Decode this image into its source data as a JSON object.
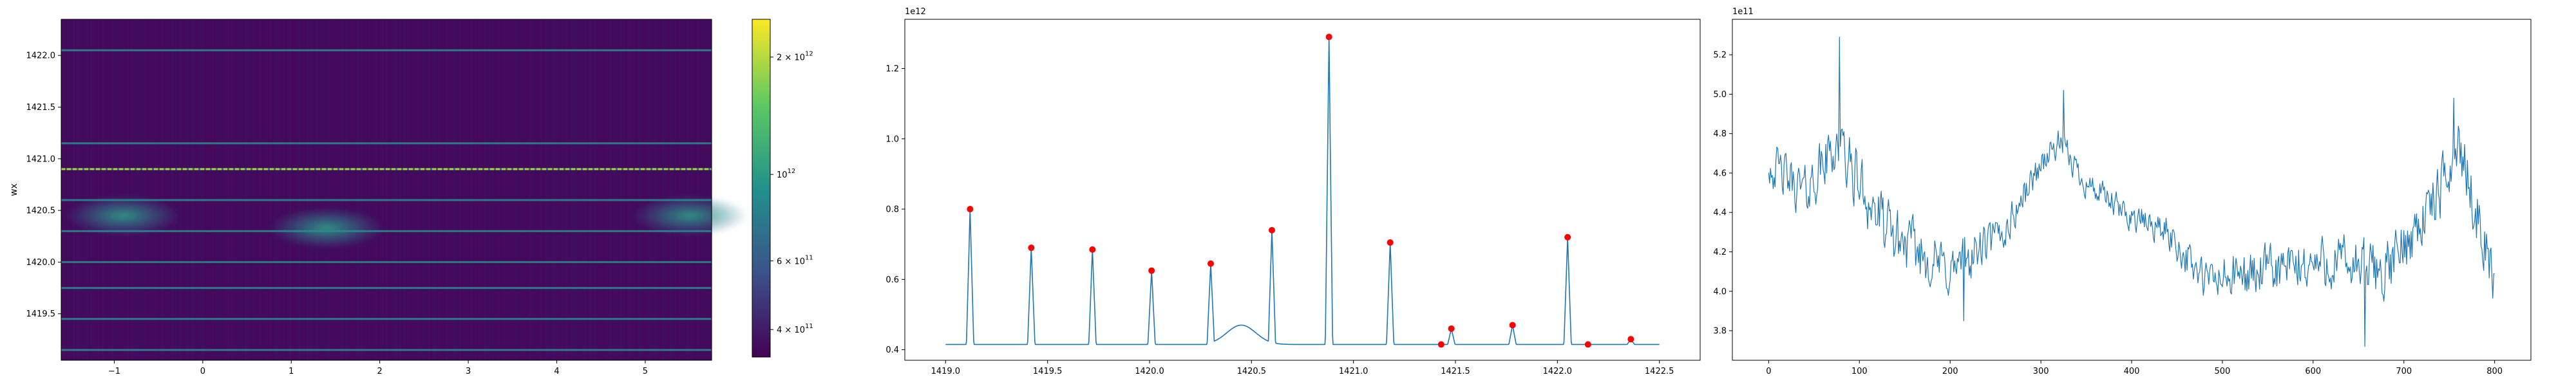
{
  "chart_data": [
    {
      "type": "heatmap",
      "ylabel": "wx",
      "xlim": [
        -1.6,
        5.75
      ],
      "ylim": [
        1419.05,
        1422.35
      ],
      "xticks": [
        -1,
        0,
        1,
        2,
        3,
        4,
        5
      ],
      "xtick_labels": [
        "−1",
        "0",
        "1",
        "2",
        "3",
        "4",
        "5"
      ],
      "yticks": [
        1419.5,
        1420.0,
        1420.5,
        1421.0,
        1421.5,
        1422.0
      ],
      "ytick_labels": [
        "1419.5",
        "1420.0",
        "1420.5",
        "1421.0",
        "1421.5",
        "1422.0"
      ],
      "horizontal_lines_y": [
        1419.15,
        1419.45,
        1419.75,
        1420.0,
        1420.3,
        1420.6,
        1420.9,
        1421.15,
        1422.05
      ],
      "bright_line_y": 1420.9,
      "blobs": [
        {
          "x": -0.9,
          "y": 1420.45
        },
        {
          "x": 1.4,
          "y": 1420.33
        },
        {
          "x": 5.5,
          "y": 1420.45
        }
      ],
      "colorbar": {
        "scale": "log",
        "range": [
          340000000000.0,
          2500000000000.0
        ],
        "ticks": [
          400000000000.0,
          600000000000.0,
          1000000000000.0,
          2000000000000.0
        ],
        "tick_labels": [
          {
            "mant": "4",
            "base": "10",
            "exp": "11"
          },
          {
            "mant": "6",
            "base": "10",
            "exp": "11"
          },
          {
            "mant": "",
            "base": "10",
            "exp": "12"
          },
          {
            "mant": "2",
            "base": "10",
            "exp": "12"
          }
        ],
        "times_sign": "×"
      },
      "colors": [
        "#440154",
        "#3b528b",
        "#21918c",
        "#5ec962",
        "#fde725"
      ]
    },
    {
      "type": "line",
      "offset_label": "1e12",
      "xlim": [
        1418.8,
        1422.7
      ],
      "ylim": [
        0.37,
        1.34
      ],
      "xticks": [
        1419.0,
        1419.5,
        1420.0,
        1420.5,
        1421.0,
        1421.5,
        1422.0,
        1422.5
      ],
      "xtick_labels": [
        "1419.0",
        "1419.5",
        "1420.0",
        "1420.5",
        "1421.0",
        "1421.5",
        "1422.0",
        "1422.5"
      ],
      "yticks": [
        0.4,
        0.6,
        0.8,
        1.0,
        1.2
      ],
      "ytick_labels": [
        "0.4",
        "0.6",
        "0.8",
        "1.0",
        "1.2"
      ],
      "baseline": 0.415,
      "x_start": 1419.0,
      "x_end": 1422.5,
      "peaks": [
        {
          "x": 1419.12,
          "y": 0.8
        },
        {
          "x": 1419.42,
          "y": 0.69
        },
        {
          "x": 1419.72,
          "y": 0.685
        },
        {
          "x": 1420.01,
          "y": 0.625
        },
        {
          "x": 1420.3,
          "y": 0.645
        },
        {
          "x": 1420.6,
          "y": 0.74
        },
        {
          "x": 1420.88,
          "y": 1.29
        },
        {
          "x": 1421.18,
          "y": 0.705
        },
        {
          "x": 1421.48,
          "y": 0.46
        },
        {
          "x": 1421.78,
          "y": 0.47
        },
        {
          "x": 1422.05,
          "y": 0.72
        },
        {
          "x": 1422.36,
          "y": 0.43
        }
      ],
      "markers": [
        {
          "x": 1419.12,
          "y": 0.8
        },
        {
          "x": 1419.42,
          "y": 0.69
        },
        {
          "x": 1419.72,
          "y": 0.685
        },
        {
          "x": 1420.01,
          "y": 0.625
        },
        {
          "x": 1420.3,
          "y": 0.645
        },
        {
          "x": 1420.6,
          "y": 0.74
        },
        {
          "x": 1420.88,
          "y": 1.29
        },
        {
          "x": 1421.18,
          "y": 0.705
        },
        {
          "x": 1421.43,
          "y": 0.415
        },
        {
          "x": 1421.48,
          "y": 0.46
        },
        {
          "x": 1421.78,
          "y": 0.47
        },
        {
          "x": 1422.05,
          "y": 0.72
        },
        {
          "x": 1422.15,
          "y": 0.415
        },
        {
          "x": 1422.36,
          "y": 0.43
        }
      ],
      "line_color": "#1f77b4",
      "marker_color": "#ff0000"
    },
    {
      "type": "line",
      "offset_label": "1e11",
      "xlim": [
        -40,
        840
      ],
      "ylim": [
        3.65,
        5.38
      ],
      "xticks": [
        0,
        100,
        200,
        300,
        400,
        500,
        600,
        700,
        800
      ],
      "xtick_labels": [
        "0",
        "100",
        "200",
        "300",
        "400",
        "500",
        "600",
        "700",
        "800"
      ],
      "yticks": [
        3.8,
        4.0,
        4.2,
        4.4,
        4.6,
        4.8,
        5.0,
        5.2
      ],
      "ytick_labels": [
        "3.8",
        "4.0",
        "4.2",
        "4.4",
        "4.6",
        "4.8",
        "5.0",
        "5.2"
      ],
      "x_count": 800,
      "trend": [
        {
          "x": 0,
          "y": 4.65
        },
        {
          "x": 40,
          "y": 4.5
        },
        {
          "x": 75,
          "y": 4.75
        },
        {
          "x": 130,
          "y": 4.3
        },
        {
          "x": 200,
          "y": 4.1
        },
        {
          "x": 260,
          "y": 4.3
        },
        {
          "x": 300,
          "y": 4.65
        },
        {
          "x": 320,
          "y": 4.75
        },
        {
          "x": 350,
          "y": 4.55
        },
        {
          "x": 390,
          "y": 4.4
        },
        {
          "x": 440,
          "y": 4.3
        },
        {
          "x": 480,
          "y": 4.05
        },
        {
          "x": 550,
          "y": 4.1
        },
        {
          "x": 620,
          "y": 4.15
        },
        {
          "x": 680,
          "y": 4.1
        },
        {
          "x": 740,
          "y": 4.5
        },
        {
          "x": 760,
          "y": 4.75
        },
        {
          "x": 800,
          "y": 4.05
        }
      ],
      "noise": [
        {
          "x": 0,
          "a": 0.15
        },
        {
          "x": 100,
          "a": 0.22
        },
        {
          "x": 200,
          "a": 0.18
        },
        {
          "x": 300,
          "a": 0.1
        },
        {
          "x": 420,
          "a": 0.1
        },
        {
          "x": 500,
          "a": 0.16
        },
        {
          "x": 650,
          "a": 0.2
        },
        {
          "x": 800,
          "a": 0.2
        }
      ],
      "extremes": [
        {
          "x": 78,
          "y": 5.29
        },
        {
          "x": 325,
          "y": 5.02
        },
        {
          "x": 657,
          "y": 3.72
        },
        {
          "x": 755,
          "y": 4.98
        },
        {
          "x": 215,
          "y": 3.85
        }
      ],
      "line_color": "#1f77b4"
    }
  ]
}
